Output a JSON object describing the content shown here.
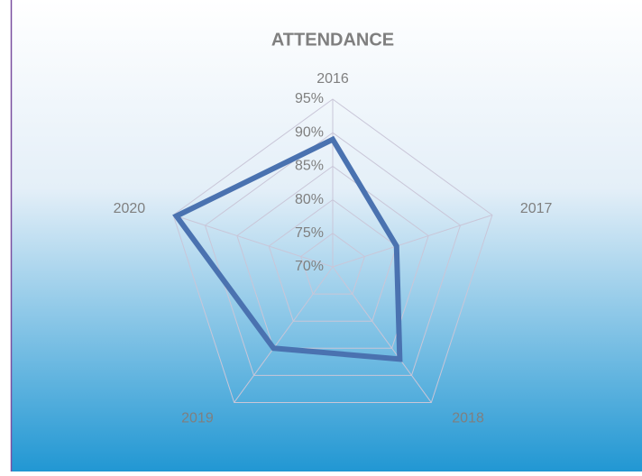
{
  "chart_data": {
    "type": "radar",
    "title": "ATTENDANCE",
    "categories": [
      "2016",
      "2017",
      "2018",
      "2019",
      "2020"
    ],
    "series": [
      {
        "name": "Attendance",
        "color": "#4a72b0",
        "values": [
          89,
          80,
          87,
          85,
          94.5
        ]
      }
    ],
    "ylim": [
      70,
      95
    ],
    "yticks": [
      {
        "value": 70,
        "label": "70%"
      },
      {
        "value": 75,
        "label": "75%"
      },
      {
        "value": 80,
        "label": "80%"
      },
      {
        "value": 85,
        "label": "85%"
      },
      {
        "value": 90,
        "label": "90%"
      },
      {
        "value": 95,
        "label": "95%"
      }
    ],
    "grid": true
  }
}
